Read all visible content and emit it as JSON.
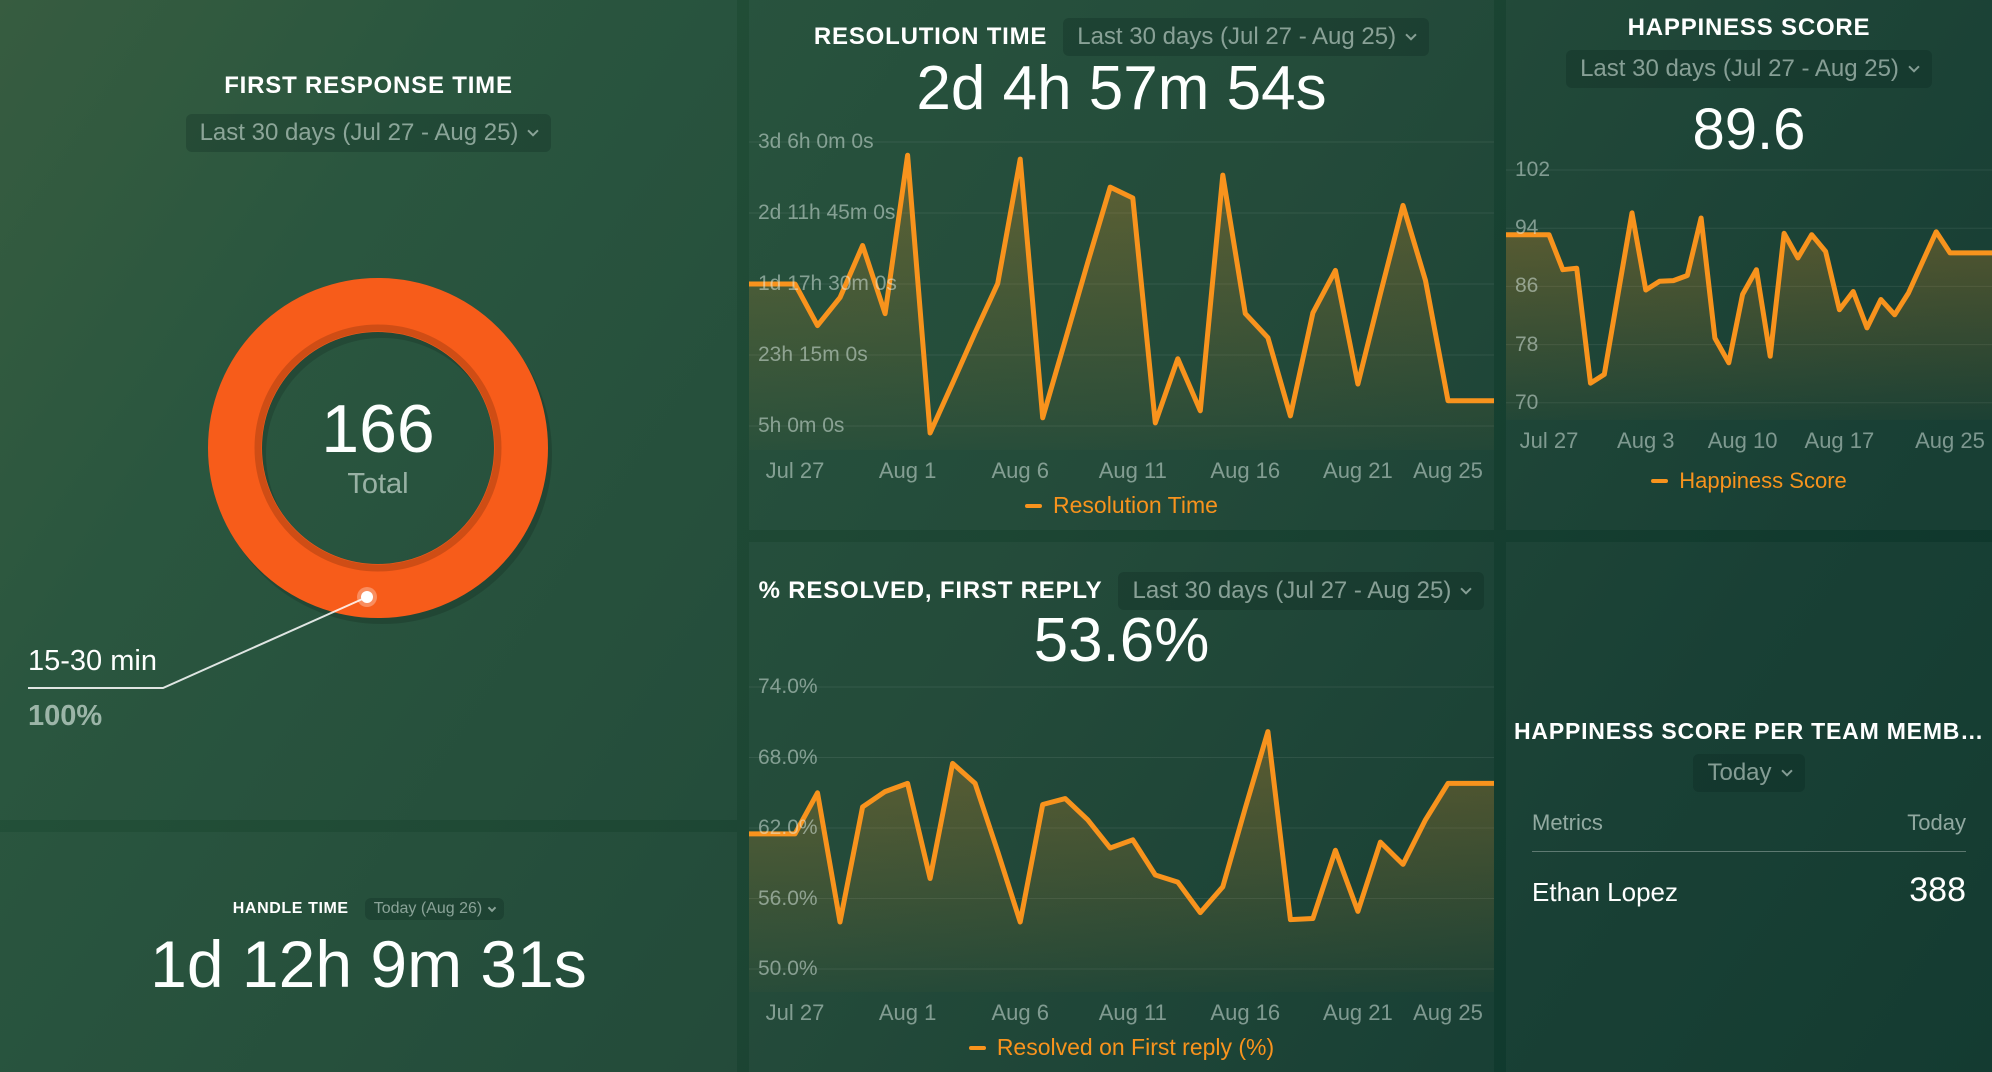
{
  "theme": {
    "background_top_left": "#30573A",
    "background_bottom_right": "#0C342A",
    "line_orange": "#F8931D",
    "donut_orange": "#F75C1A",
    "text_primary": "#FFFFFF",
    "text_muted": "#9DB3A6"
  },
  "panels": {
    "first_response_time": {
      "title": "FIRST RESPONSE TIME",
      "range_label": "Last 30 days (Jul 27 - Aug 25)",
      "center_value": "166",
      "center_label": "Total",
      "callout": {
        "label": "15-30 min",
        "value": "100%"
      }
    },
    "handle_time": {
      "title": "HANDLE TIME",
      "range_label": "Today (Aug 26)",
      "value": "1d 12h 9m 31s"
    },
    "resolution_time": {
      "title": "RESOLUTION TIME",
      "range_label": "Last 30 days (Jul 27 - Aug 25)",
      "value": "2d 4h 57m 54s"
    },
    "resolved_first_reply": {
      "title": "% RESOLVED, FIRST REPLY",
      "range_label": "Last 30 days (Jul 27 - Aug 25)",
      "value": "53.6%"
    },
    "happiness_score": {
      "title": "HAPPINESS SCORE",
      "range_label": "Last 30 days (Jul 27 - Aug 25)",
      "value": "89.6"
    },
    "happiness_per_member": {
      "title": "HAPPINESS SCORE PER TEAM MEMB…",
      "range_label": "Today",
      "columns": [
        "Metrics",
        "Today"
      ],
      "rows": [
        {
          "name": "Ethan Lopez",
          "value": "388"
        }
      ]
    }
  },
  "chart_data": [
    {
      "name": "first-response-donut",
      "type": "pie",
      "title": "First Response Time",
      "total": 166,
      "total_label": "Total",
      "slices": [
        {
          "label": "15-30 min",
          "percent": 100
        }
      ],
      "color": "#F75C1A"
    },
    {
      "name": "resolution-time-line",
      "type": "line",
      "series_name": "Resolution Time",
      "unit": "hours",
      "ylim": [
        5,
        78
      ],
      "grid": true,
      "legend_position": "bottom",
      "x": [
        "Jul 27",
        "Jul 28",
        "Jul 29",
        "Jul 30",
        "Jul 31",
        "Aug 1",
        "Aug 2",
        "Aug 3",
        "Aug 4",
        "Aug 5",
        "Aug 6",
        "Aug 7",
        "Aug 8",
        "Aug 9",
        "Aug 10",
        "Aug 11",
        "Aug 12",
        "Aug 13",
        "Aug 14",
        "Aug 15",
        "Aug 16",
        "Aug 17",
        "Aug 18",
        "Aug 19",
        "Aug 20",
        "Aug 21",
        "Aug 22",
        "Aug 23",
        "Aug 24",
        "Aug 25"
      ],
      "values": [
        41.5,
        30.8,
        38,
        51.4,
        33.9,
        74.6,
        3.2,
        16,
        29,
        41.6,
        73.6,
        7.1,
        27,
        47,
        66.4,
        63.6,
        5.8,
        22.3,
        8.9,
        69.5,
        33.9,
        27.7,
        7.6,
        34.1,
        45,
        15.8,
        39,
        61.7,
        42.4,
        11.5
      ],
      "y_ticks": [
        {
          "value": 78,
          "label": "3d 6h 0m 0s"
        },
        {
          "value": 59.75,
          "label": "2d 11h 45m 0s"
        },
        {
          "value": 41.5,
          "label": "1d 17h 30m 0s"
        },
        {
          "value": 23.25,
          "label": "23h 15m 0s"
        },
        {
          "value": 5,
          "label": "5h 0m 0s"
        }
      ],
      "x_ticks": [
        {
          "day": 0,
          "label": "Jul 27"
        },
        {
          "day": 5,
          "label": "Aug 1"
        },
        {
          "day": 10,
          "label": "Aug 6"
        },
        {
          "day": 15,
          "label": "Aug 11"
        },
        {
          "day": 20,
          "label": "Aug 16"
        },
        {
          "day": 25,
          "label": "Aug 21"
        },
        {
          "day": 29,
          "label": "Aug 25"
        }
      ]
    },
    {
      "name": "resolved-first-reply-line",
      "type": "line",
      "series_name": "Resolved on First reply (%)",
      "unit": "percent",
      "ylim": [
        50,
        74
      ],
      "grid": true,
      "legend_position": "bottom",
      "x": [
        "Jul 27",
        "Jul 28",
        "Jul 29",
        "Jul 30",
        "Jul 31",
        "Aug 1",
        "Aug 2",
        "Aug 3",
        "Aug 4",
        "Aug 5",
        "Aug 6",
        "Aug 7",
        "Aug 8",
        "Aug 9",
        "Aug 10",
        "Aug 11",
        "Aug 12",
        "Aug 13",
        "Aug 14",
        "Aug 15",
        "Aug 16",
        "Aug 17",
        "Aug 18",
        "Aug 19",
        "Aug 20",
        "Aug 21",
        "Aug 22",
        "Aug 23",
        "Aug 24",
        "Aug 25"
      ],
      "values": [
        61.5,
        65,
        54,
        63.8,
        65.1,
        65.8,
        57.7,
        67.5,
        65.8,
        60,
        54,
        64,
        64.5,
        62.7,
        60.3,
        61,
        58,
        57.4,
        54.8,
        57,
        63.7,
        70.2,
        54.2,
        54.3,
        60.1,
        54.9,
        60.8,
        58.9,
        62.7,
        65.8
      ],
      "y_ticks": [
        {
          "value": 74,
          "label": "74.0%"
        },
        {
          "value": 68,
          "label": "68.0%"
        },
        {
          "value": 62,
          "label": "62.0%"
        },
        {
          "value": 56,
          "label": "56.0%"
        },
        {
          "value": 50,
          "label": "50.0%"
        }
      ],
      "x_ticks": [
        {
          "day": 0,
          "label": "Jul 27"
        },
        {
          "day": 5,
          "label": "Aug 1"
        },
        {
          "day": 10,
          "label": "Aug 6"
        },
        {
          "day": 15,
          "label": "Aug 11"
        },
        {
          "day": 20,
          "label": "Aug 16"
        },
        {
          "day": 25,
          "label": "Aug 21"
        },
        {
          "day": 29,
          "label": "Aug 25"
        }
      ]
    },
    {
      "name": "happiness-score-line",
      "type": "line",
      "series_name": "Happiness Score",
      "unit": "score",
      "ylim": [
        70,
        102
      ],
      "grid": true,
      "legend_position": "bottom",
      "x": [
        "Jul 27",
        "Jul 28",
        "Jul 29",
        "Jul 30",
        "Jul 31",
        "Aug 1",
        "Aug 2",
        "Aug 3",
        "Aug 4",
        "Aug 5",
        "Aug 6",
        "Aug 7",
        "Aug 8",
        "Aug 9",
        "Aug 10",
        "Aug 11",
        "Aug 12",
        "Aug 13",
        "Aug 14",
        "Aug 15",
        "Aug 16",
        "Aug 17",
        "Aug 18",
        "Aug 19",
        "Aug 20",
        "Aug 21",
        "Aug 22",
        "Aug 23",
        "Aug 24",
        "Aug 25"
      ],
      "values": [
        93.1,
        88.3,
        88.5,
        72.7,
        73.9,
        85,
        96.1,
        85.5,
        86.7,
        86.8,
        87.5,
        95.4,
        78.9,
        75.5,
        84.9,
        88.3,
        76.4,
        93.3,
        89.9,
        93.1,
        90.8,
        82.8,
        85.3,
        80.3,
        84.2,
        82.1,
        85.1,
        89.3,
        93.5,
        90.6
      ],
      "y_ticks": [
        {
          "value": 102,
          "label": "102"
        },
        {
          "value": 94,
          "label": "94"
        },
        {
          "value": 86,
          "label": "86"
        },
        {
          "value": 78,
          "label": "78"
        },
        {
          "value": 70,
          "label": "70"
        }
      ],
      "x_ticks": [
        {
          "day": 0,
          "label": "Jul 27"
        },
        {
          "day": 7,
          "label": "Aug 3"
        },
        {
          "day": 14,
          "label": "Aug 10"
        },
        {
          "day": 21,
          "label": "Aug 17"
        },
        {
          "day": 29,
          "label": "Aug 25"
        }
      ]
    },
    {
      "name": "happiness-per-member-table",
      "type": "table",
      "columns": [
        "Metrics",
        "Today"
      ],
      "rows": [
        [
          "Ethan Lopez",
          388
        ]
      ]
    }
  ]
}
